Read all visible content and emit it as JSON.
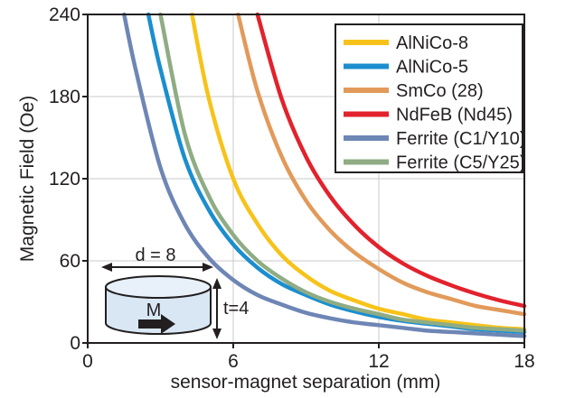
{
  "chart_data": {
    "type": "line",
    "title": "",
    "xlabel": "sensor-magnet separation (mm)",
    "ylabel": "Magnetic Field (Oe)",
    "xlim": [
      0,
      18
    ],
    "ylim": [
      0,
      240
    ],
    "x_ticks": [
      "0",
      "6",
      "12",
      "18"
    ],
    "y_ticks": [
      "0",
      "60",
      "120",
      "180",
      "240"
    ],
    "grid": true,
    "legend_position": "top-right",
    "series": [
      {
        "name": "AlNiCo-8",
        "color": "#f7c31a",
        "x": [
          4.3,
          5,
          6,
          7,
          8,
          9,
          10,
          11,
          12,
          13,
          14,
          15,
          16,
          17,
          18
        ],
        "y": [
          240,
          178,
          120,
          87,
          64,
          49,
          38,
          31,
          25,
          21,
          17,
          15,
          13,
          11,
          10
        ]
      },
      {
        "name": "AlNiCo-5",
        "color": "#1b8ecf",
        "x": [
          2.5,
          3,
          4,
          5,
          6,
          7,
          8,
          9,
          10,
          11,
          12,
          13,
          14,
          15,
          16,
          17,
          18
        ],
        "y": [
          240,
          200,
          135,
          97,
          72,
          55,
          43,
          35,
          28,
          23,
          19,
          16,
          14,
          12,
          10,
          9,
          8
        ]
      },
      {
        "name": "SmCo (28)",
        "color": "#e29a5a",
        "x": [
          6.2,
          7,
          8,
          9,
          10,
          11,
          12,
          13,
          14,
          15,
          16,
          17,
          18
        ],
        "y": [
          240,
          184,
          136,
          104,
          82,
          66,
          54,
          44,
          37,
          32,
          27,
          24,
          21
        ]
      },
      {
        "name": "NdFeB (Nd45)",
        "color": "#e2222c",
        "x": [
          7,
          8,
          9,
          10,
          11,
          12,
          13,
          14,
          15,
          16,
          17,
          18
        ],
        "y": [
          240,
          178,
          136,
          107,
          86,
          70,
          58,
          49,
          42,
          36,
          31,
          27
        ]
      },
      {
        "name": "Ferrite (C1/Y10)",
        "color": "#6e86b5",
        "x": [
          1.5,
          2,
          3,
          4,
          5,
          6,
          7,
          8,
          9,
          10,
          11,
          12,
          13,
          14,
          15,
          16,
          17,
          18
        ],
        "y": [
          240,
          198,
          128,
          87,
          62,
          46,
          35,
          28,
          22,
          18,
          15,
          13,
          11,
          9,
          8,
          7,
          6,
          5
        ]
      },
      {
        "name": "Ferrite (C5/Y25)",
        "color": "#8fac84",
        "x": [
          3,
          4,
          5,
          6,
          7,
          8,
          9,
          10,
          11,
          12,
          13,
          14,
          15,
          16,
          17,
          18
        ],
        "y": [
          240,
          153,
          107,
          79,
          60,
          47,
          37,
          30,
          25,
          21,
          17,
          15,
          13,
          11,
          10,
          9
        ]
      }
    ],
    "annotations": {
      "diameter": "d = 8",
      "thickness": "t=4",
      "magnetization": "M"
    }
  }
}
